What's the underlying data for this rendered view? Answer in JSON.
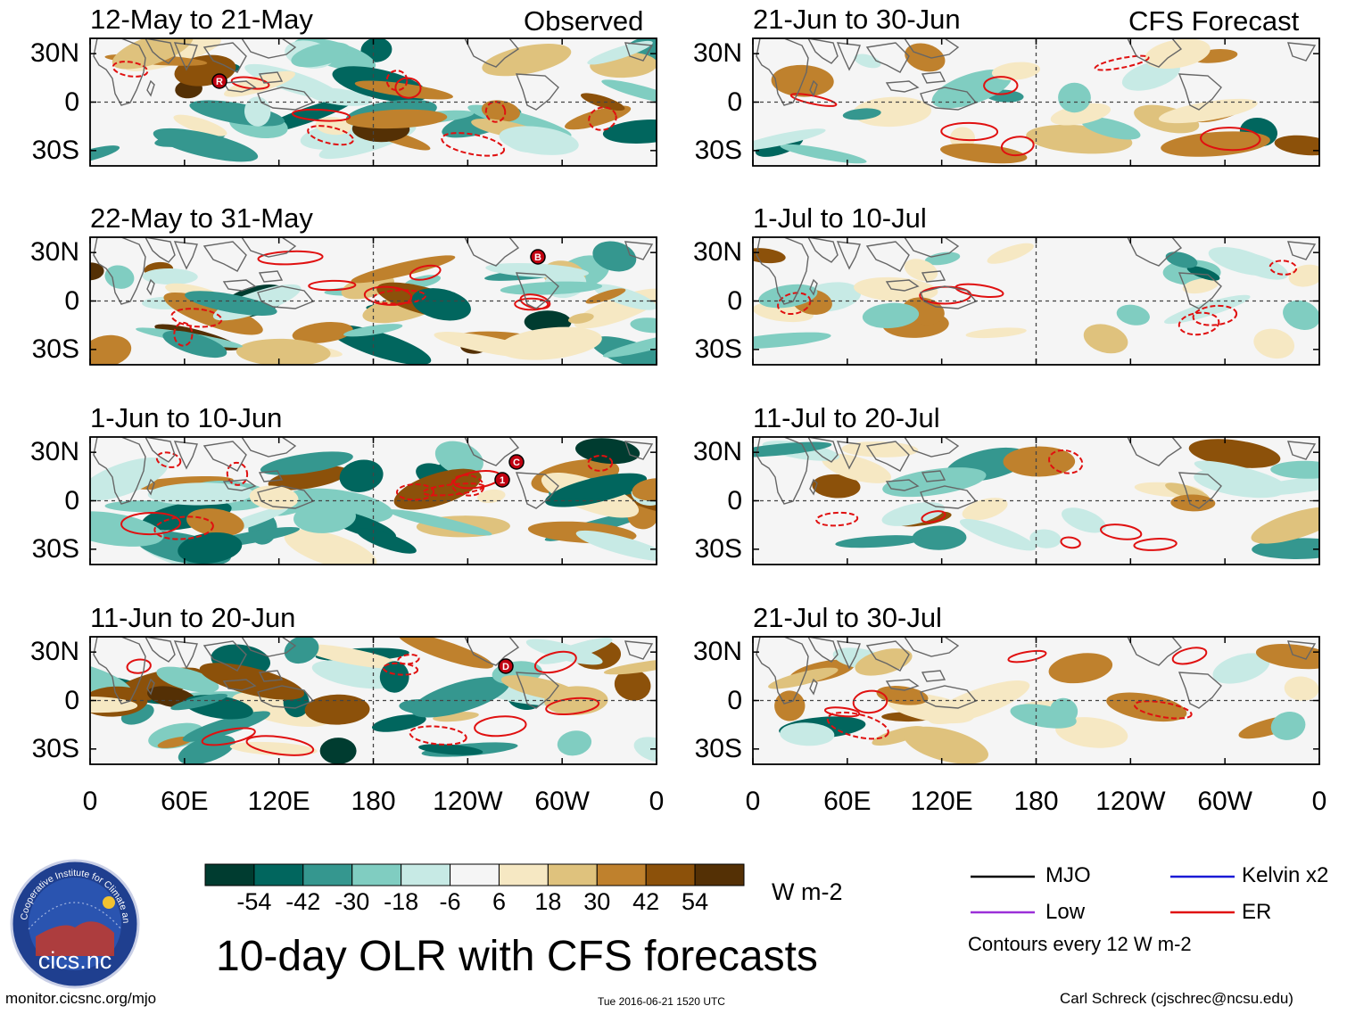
{
  "figure": {
    "title": "10-day OLR with CFS forecasts",
    "website": "monitor.cicsnc.org/mjo",
    "timestamp": "Tue 2016-06-21 1520 UTC",
    "credit": "Carl Schreck (cjschrec@ncsu.edu)",
    "logo": {
      "ring_text": "Cooperative Institute for Climate and Satellites",
      "name": "cics.nc"
    }
  },
  "column_labels": {
    "left": "Observed",
    "right": "CFS Forecast"
  },
  "chart_data": {
    "type": "heatmap",
    "field": "OLR anomaly",
    "units": "W m-2",
    "x_ticks": [
      "0",
      "60E",
      "120E",
      "180",
      "120W",
      "60W",
      "0"
    ],
    "y_ticks": [
      "30N",
      "0",
      "30S"
    ],
    "colorbar": {
      "ticks": [
        "-54",
        "-42",
        "-30",
        "-18",
        "-6",
        "6",
        "18",
        "30",
        "42",
        "54"
      ],
      "colors": [
        "#003c30",
        "#01665e",
        "#35978f",
        "#80cdc1",
        "#c7eae5",
        "#f5f5f5",
        "#f6e8c3",
        "#dfc27d",
        "#bf812d",
        "#8c510a",
        "#543005"
      ]
    },
    "panels": [
      {
        "title": "12-May to 21-May",
        "source": "observed",
        "storms": [
          "R"
        ]
      },
      {
        "title": "22-May to 31-May",
        "source": "observed",
        "storms": [
          "B"
        ]
      },
      {
        "title": "1-Jun to 10-Jun",
        "source": "observed",
        "storms": [
          "C",
          "1"
        ]
      },
      {
        "title": "11-Jun to 20-Jun",
        "source": "observed",
        "storms": [
          "D"
        ]
      },
      {
        "title": "21-Jun to 30-Jun",
        "source": "forecast",
        "storms": []
      },
      {
        "title": "1-Jul to 10-Jul",
        "source": "forecast",
        "storms": []
      },
      {
        "title": "11-Jul to 20-Jul",
        "source": "forecast",
        "storms": []
      },
      {
        "title": "21-Jul to 30-Jul",
        "source": "forecast",
        "storms": []
      }
    ],
    "legend": [
      {
        "label": "MJO",
        "color": "#000000"
      },
      {
        "label": "Kelvin x2",
        "color": "#1a1ad6"
      },
      {
        "label": "Low",
        "color": "#9b30d8"
      },
      {
        "label": "ER",
        "color": "#e01010"
      }
    ],
    "contour_note": "Contours every 12 W m-2"
  }
}
